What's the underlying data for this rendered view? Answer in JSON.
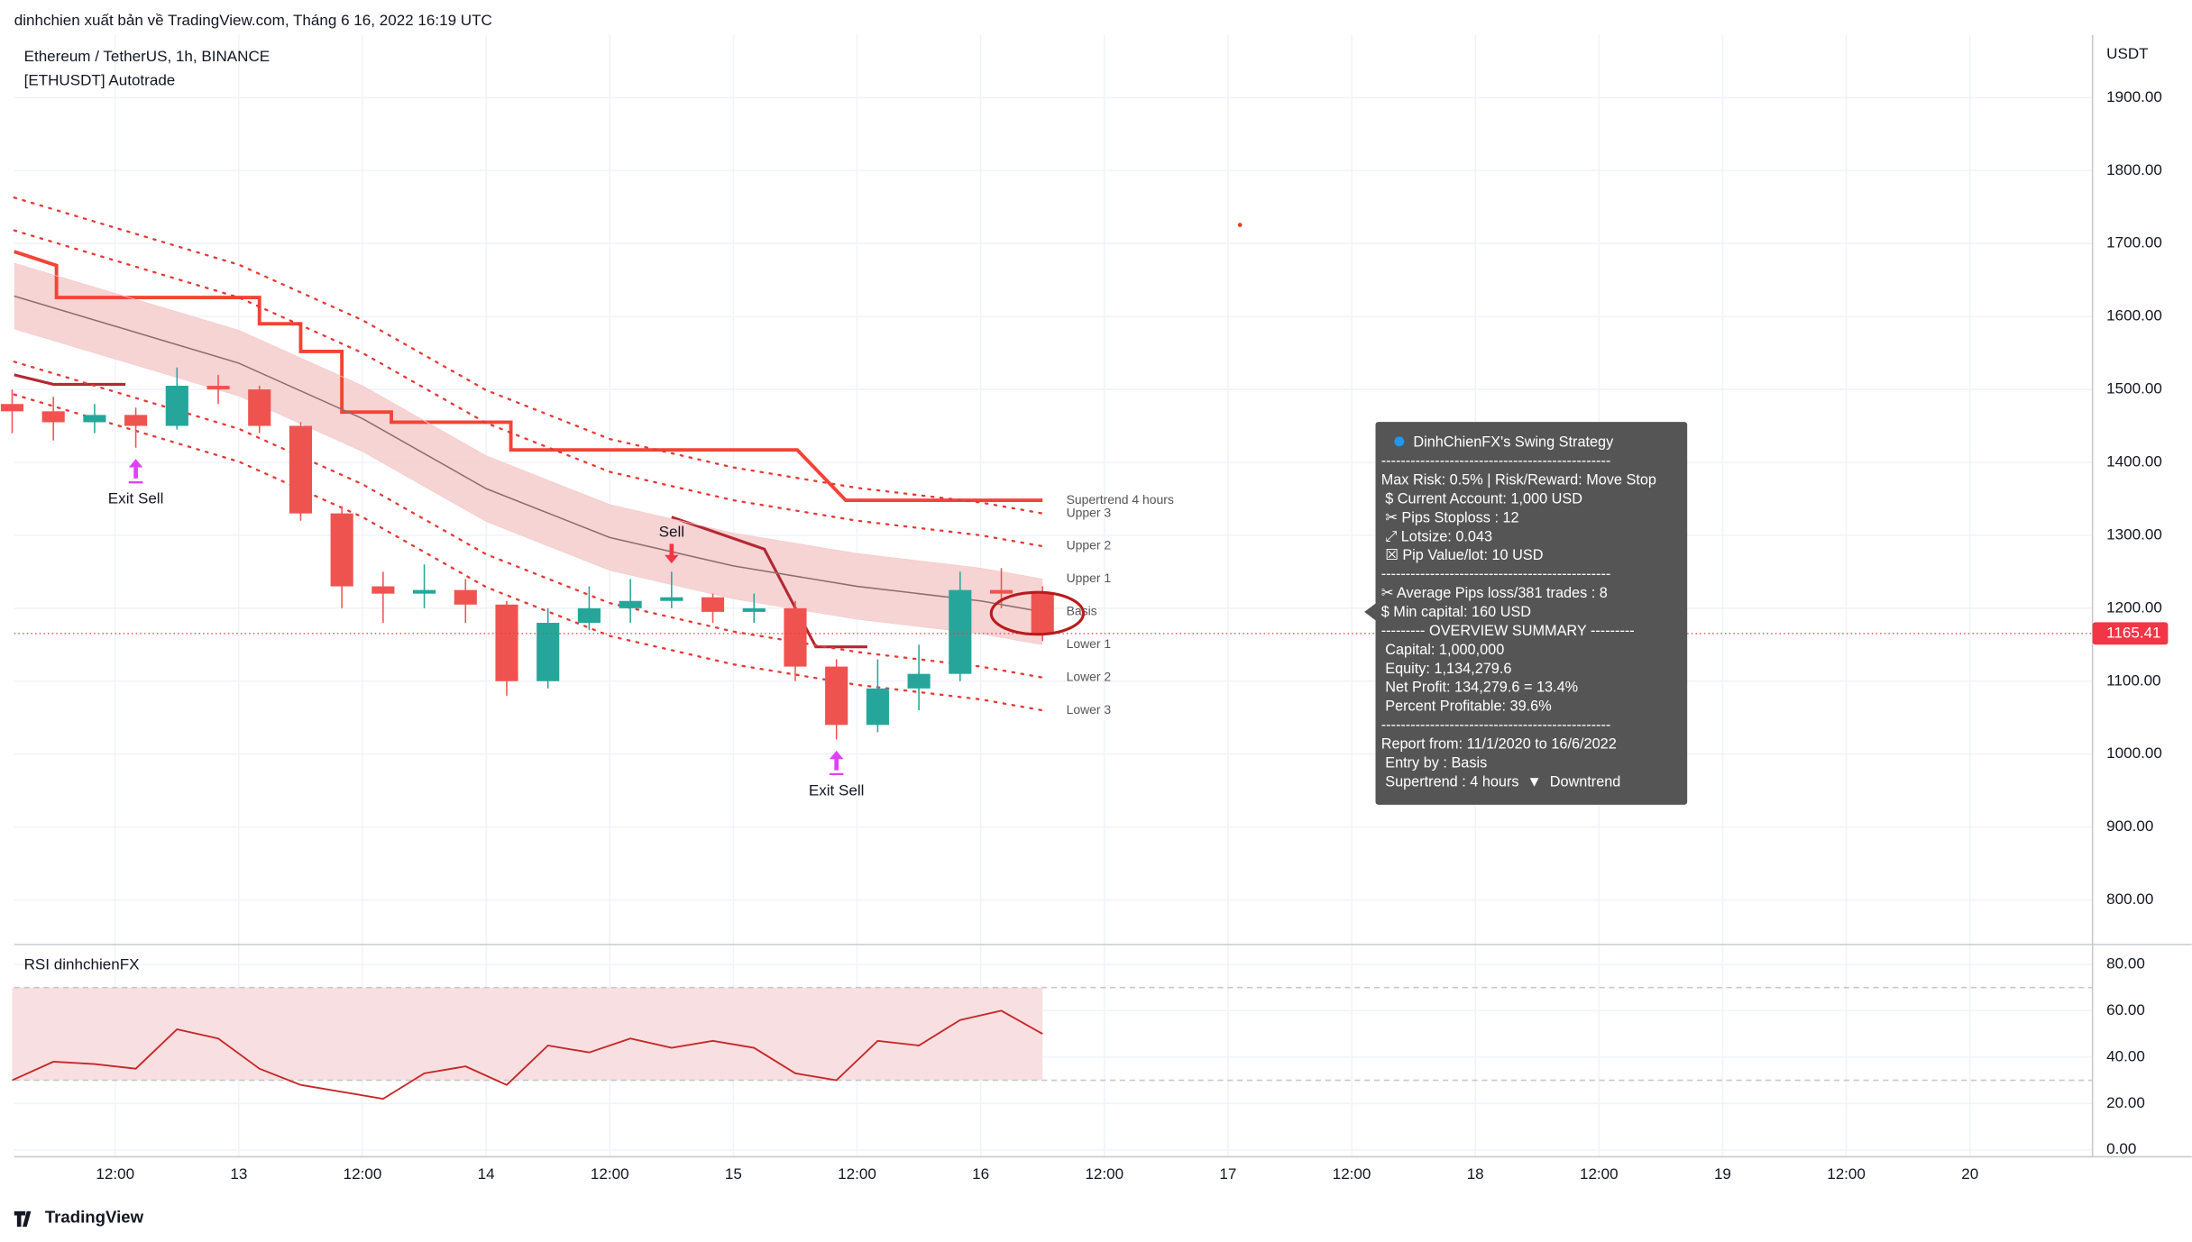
{
  "header": {
    "attribution": "dinhchien xuất bản về TradingView.com, Tháng 6 16, 2022 16:19 UTC",
    "symbol": "Ethereum / TetherUS, 1h, BINANCE",
    "strategy": "[ETHUSDT] Autotrade",
    "currency": "USDT",
    "brand": "TradingView"
  },
  "chart_data": [
    {
      "type": "candlestick",
      "x": [
        2,
        6,
        10,
        14,
        18,
        22,
        26,
        30,
        34,
        38,
        42,
        46,
        50,
        54,
        58,
        62,
        66,
        70,
        74,
        78,
        82,
        86,
        90,
        94,
        98,
        102
      ],
      "open": [
        1480,
        1470,
        1455,
        1465,
        1450,
        1505,
        1500,
        1450,
        1330,
        1230,
        1220,
        1225,
        1205,
        1100,
        1180,
        1200,
        1210,
        1215,
        1195,
        1200,
        1120,
        1040,
        1090,
        1110,
        1225,
        1220
      ],
      "high": [
        1500,
        1490,
        1480,
        1475,
        1530,
        1520,
        1505,
        1455,
        1340,
        1250,
        1260,
        1240,
        1210,
        1200,
        1230,
        1240,
        1250,
        1220,
        1220,
        1210,
        1130,
        1130,
        1150,
        1250,
        1255,
        1230
      ],
      "low": [
        1440,
        1430,
        1440,
        1420,
        1445,
        1480,
        1440,
        1320,
        1200,
        1180,
        1200,
        1180,
        1080,
        1090,
        1170,
        1180,
        1200,
        1180,
        1180,
        1100,
        1020,
        1030,
        1060,
        1100,
        1200,
        1155
      ],
      "close": [
        1470,
        1455,
        1465,
        1450,
        1505,
        1500,
        1450,
        1330,
        1230,
        1220,
        1225,
        1205,
        1100,
        1180,
        1200,
        1210,
        1215,
        1195,
        1200,
        1120,
        1040,
        1090,
        1110,
        1225,
        1220,
        1165.41
      ],
      "up_color": "#26a69a",
      "down_color": "#ef5350",
      "last_price": 1165.41,
      "last_price_color": "#f23645",
      "xlim": [
        2.2,
        203.9
      ],
      "xticks": [
        {
          "value": 12,
          "label": "12:00"
        },
        13,
        {
          "value": 36,
          "label": "12:00"
        },
        14,
        {
          "value": 60,
          "label": "12:00"
        },
        15,
        {
          "value": 84,
          "label": "12:00"
        },
        16,
        {
          "value": 108,
          "label": "12:00"
        },
        17,
        {
          "value": 132,
          "label": "12:00"
        },
        18,
        {
          "value": 156,
          "label": "12:00"
        },
        19,
        {
          "value": 180,
          "label": "12:00"
        },
        20
      ],
      "xtick_hours": [
        12,
        24,
        36,
        48,
        60,
        72,
        84,
        96,
        108,
        120,
        132,
        144,
        156,
        168,
        180,
        192
      ],
      "ylim": [
        741,
        1986
      ],
      "yticks": [
        {
          "value": 800,
          "label": "800.00"
        },
        {
          "value": 900,
          "label": "900.00"
        },
        {
          "value": 1000,
          "label": "1000.00"
        },
        {
          "value": 1100,
          "label": "1100.00"
        },
        {
          "value": 1200,
          "label": "1200.00"
        },
        {
          "value": 1300,
          "label": "1300.00"
        },
        {
          "value": 1400,
          "label": "1400.00"
        },
        {
          "value": 1500,
          "label": "1500.00"
        },
        {
          "value": 1600,
          "label": "1600.00"
        },
        {
          "value": 1700,
          "label": "1700.00"
        },
        {
          "value": 1800,
          "label": "1800.00"
        },
        {
          "value": 1900,
          "label": "1900.00"
        }
      ],
      "grid": true,
      "band_color": "#f4cccc",
      "series": [
        {
          "name": "Supertrend 4 hours",
          "color": "#f44336",
          "style": "solid",
          "width": 2.5,
          "x": [
            2.2,
            6.3,
            6.3,
            26,
            26,
            30,
            30,
            34,
            34,
            38.8,
            38.8,
            50.4,
            50.4,
            78.2,
            82.9,
            102
          ],
          "values": [
            1689,
            1670,
            1626,
            1626,
            1590,
            1590,
            1552,
            1552,
            1469,
            1469,
            1455,
            1455,
            1417,
            1417,
            1348,
            1348
          ]
        },
        {
          "color": "#b22833",
          "style": "solid",
          "width": 2,
          "x": [
            2.2,
            6,
            13,
            40,
            66,
            75,
            80,
            85
          ],
          "values": [
            1520,
            1507,
            1507,
            null,
            1325,
            1281,
            1147,
            1147
          ]
        },
        {
          "name": "Upper 3",
          "color": "#e53935",
          "style": "dotted",
          "width": 1.5,
          "x": [
            2.2,
            24,
            36,
            48,
            60,
            72,
            84,
            96,
            102
          ],
          "values": [
            1763,
            1671,
            1595,
            1499,
            1432,
            1393,
            1365,
            1345,
            1330
          ]
        },
        {
          "name": "Upper 2",
          "color": "#e53935",
          "style": "dotted",
          "width": 1.5,
          "x": [
            2.2,
            24,
            36,
            48,
            60,
            72,
            84,
            96,
            102
          ],
          "values": [
            1718,
            1626,
            1550,
            1454,
            1387,
            1348,
            1320,
            1300,
            1285
          ]
        },
        {
          "name": "Upper 1",
          "color": "#f4cccc",
          "style": "solid",
          "width": 0.5,
          "band_edge": true,
          "x": [
            2.2,
            24,
            36,
            48,
            60,
            72,
            84,
            96,
            102
          ],
          "values": [
            1673,
            1581,
            1505,
            1409,
            1342,
            1303,
            1275,
            1255,
            1240
          ]
        },
        {
          "name": "Basis",
          "color": "#8d6e6e",
          "style": "solid",
          "width": 1,
          "x": [
            2.2,
            24,
            36,
            48,
            60,
            72,
            84,
            96,
            102
          ],
          "values": [
            1628,
            1536,
            1460,
            1364,
            1297,
            1258,
            1230,
            1210,
            1195
          ]
        },
        {
          "name": "Lower 1",
          "color": "#f4cccc",
          "style": "solid",
          "width": 0.5,
          "band_edge": true,
          "x": [
            2.2,
            24,
            36,
            48,
            60,
            72,
            84,
            96,
            102
          ],
          "values": [
            1583,
            1491,
            1415,
            1319,
            1252,
            1213,
            1185,
            1165,
            1150
          ]
        },
        {
          "name": "Lower 2",
          "color": "#e53935",
          "style": "dotted",
          "width": 1.5,
          "x": [
            2.2,
            24,
            36,
            48,
            60,
            72,
            84,
            96,
            102
          ],
          "values": [
            1538,
            1446,
            1370,
            1274,
            1207,
            1168,
            1140,
            1120,
            1105
          ]
        },
        {
          "name": "Lower 3",
          "color": "#e53935",
          "style": "dotted",
          "width": 1.5,
          "x": [
            2.2,
            24,
            36,
            48,
            60,
            72,
            84,
            96,
            102
          ],
          "values": [
            1493,
            1401,
            1325,
            1229,
            1162,
            1123,
            1095,
            1075,
            1060
          ]
        }
      ],
      "annotations": [
        {
          "text": "Exit Sell",
          "index": 3,
          "side": "below",
          "color": "#e040fb"
        },
        {
          "text": "Sell",
          "index": 16,
          "side": "above",
          "color": "#f23645"
        },
        {
          "text": "Exit Sell",
          "index": 20,
          "side": "below",
          "color": "#e040fb"
        }
      ]
    },
    {
      "type": "line",
      "title": "RSI dinhchienFX",
      "x": [
        2,
        6,
        10,
        14,
        18,
        22,
        26,
        30,
        34,
        38,
        42,
        46,
        50,
        54,
        58,
        62,
        66,
        70,
        74,
        78,
        82,
        86,
        90,
        94,
        98,
        102
      ],
      "values": [
        30,
        38,
        37,
        35,
        52,
        48,
        35,
        28,
        25,
        22,
        33,
        36,
        28,
        45,
        42,
        48,
        44,
        47,
        44,
        33,
        30,
        47,
        45,
        56,
        60,
        50
      ],
      "color": "#c62828",
      "band_color": "#f8dfe1",
      "hlines": [
        70,
        30
      ],
      "xlim": [
        2.2,
        203.9
      ],
      "ylim": [
        -3,
        88
      ],
      "yticks": [
        {
          "value": 0,
          "label": "0.00"
        },
        {
          "value": 20,
          "label": "20.00"
        },
        {
          "value": 40,
          "label": "40.00"
        },
        {
          "value": 60,
          "label": "60.00"
        },
        {
          "value": 80,
          "label": "80.00"
        }
      ]
    }
  ],
  "info_box": {
    "title": "DinhChienFX's Swing Strategy",
    "lines": [
      "-----------------------------------------------",
      "Max Risk: 0.5% | Risk/Reward: Move Stop",
      " $ Current Account: 1,000 USD",
      " ✂ Pips Stoploss : 12",
      " ⤢ Lotsize: 0.043",
      " ☒ Pip Value/lot: 10 USD",
      "-----------------------------------------------",
      "✂ Average Pips loss/381 trades : 8",
      "$ Min capital: 160 USD",
      "--------- OVERVIEW SUMMARY ---------",
      " Capital: 1,000,000",
      " Equity: 1,134,279.6",
      " Net Profit: 134,279.6 = 13.4%",
      " Percent Profitable: 39.6%",
      "-----------------------------------------------",
      "Report from: 11/1/2020 to 16/6/2022",
      " Entry by : Basis",
      " Supertrend : 4 hours  ▼  Downtrend"
    ]
  }
}
